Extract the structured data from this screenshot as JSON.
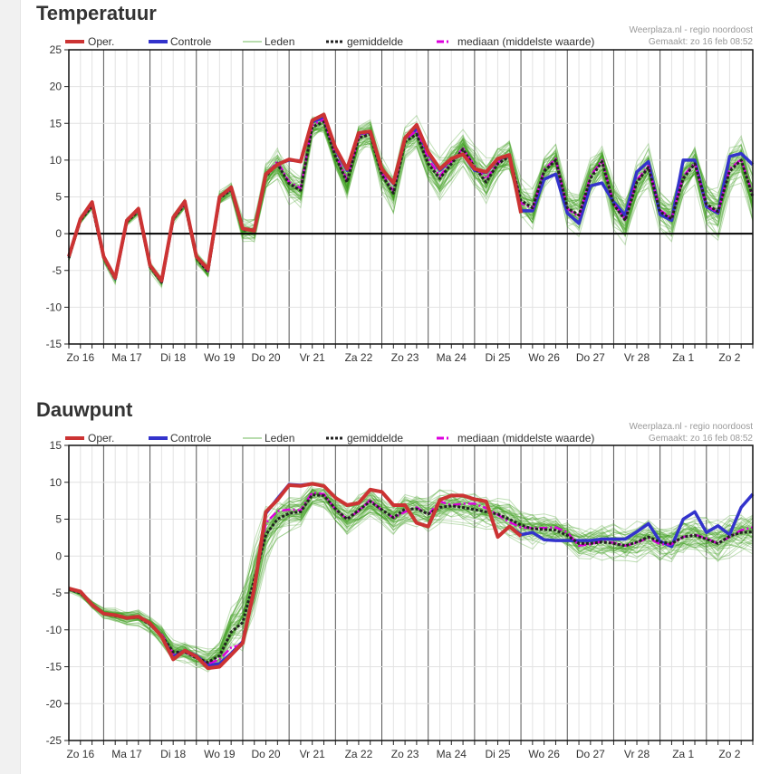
{
  "legend": {
    "oper": "Oper.",
    "control": "Controle",
    "members": "Leden",
    "mean": "gemiddelde",
    "median": "mediaan (middelste waarde)"
  },
  "credit": {
    "source": "Weerplaza.nl - regio noordoost",
    "made": "Gemaakt: zo 16 feb 08:52"
  },
  "colors": {
    "oper": "#cc3333",
    "control": "#3333cc",
    "members": "#3f9f1f",
    "mean": "#222222",
    "median": "#dd00dd"
  },
  "chart_data": [
    {
      "type": "line",
      "title": "Temperatuur",
      "x_step": "6 uur",
      "days": [
        "Zo 16",
        "Ma 17",
        "Di 18",
        "Wo 19",
        "Do 20",
        "Vr 21",
        "Za 22",
        "Zo 23",
        "Ma 24",
        "Di 25",
        "Wo 26",
        "Do 27",
        "Vr 28",
        "Za 1",
        "Zo 2"
      ],
      "yticks": [
        25,
        20,
        15,
        10,
        5,
        0,
        -5,
        -10,
        -15
      ],
      "ylim": [
        -15,
        25
      ],
      "zero_line": true,
      "grid": true,
      "legend_position": "top",
      "series": [
        {
          "name": "Oper.",
          "key": "oper",
          "values": [
            -3.1,
            2,
            4.3,
            -3.1,
            -6,
            1.8,
            3.4,
            -4.3,
            -6.4,
            2.2,
            4.4,
            -3.1,
            -4.8,
            5,
            6.3,
            0.7,
            0.4,
            8.1,
            9.4,
            10.1,
            9.8,
            15.4,
            16.2,
            11.7,
            8.8,
            13.7,
            13.9,
            8.8,
            6.9,
            13,
            14.8,
            11.1,
            8.8,
            10.2,
            10.8,
            8.8,
            8.4,
            10.2,
            10.7,
            2.8
          ]
        },
        {
          "name": "Controle",
          "key": "control",
          "values": [
            -3.1,
            2,
            4.2,
            -3.1,
            -6.1,
            1.8,
            3.3,
            -4.3,
            -6.5,
            2.1,
            4.3,
            -3.1,
            -4.9,
            5,
            6.2,
            0.7,
            0.4,
            8.1,
            9.5,
            10,
            9.9,
            15.2,
            15.8,
            11.5,
            8.6,
            13.6,
            13.8,
            8.7,
            6.8,
            13,
            14.2,
            10.9,
            8.6,
            10.1,
            10.8,
            8.6,
            8.3,
            10.1,
            10.6,
            3.1,
            3.1,
            7.4,
            8.1,
            2.8,
            1.4,
            6.5,
            6.9,
            4.3,
            2.5,
            8.4,
            9.8,
            2.6,
            1.8,
            10,
            10,
            3.7,
            2.8,
            10.5,
            10.9,
            9.4
          ]
        },
        {
          "name": "gemiddelde",
          "key": "mean",
          "values": [
            -3.3,
            1.8,
            3.8,
            -3.3,
            -6.2,
            1.6,
            3.1,
            -4.5,
            -6.6,
            2,
            4,
            -3.3,
            -5.2,
            4.8,
            6,
            0.5,
            0.5,
            7.8,
            9.5,
            6.8,
            5.9,
            14.5,
            15.2,
            10.5,
            7,
            13,
            13.5,
            8,
            5.5,
            12.5,
            13.5,
            9.5,
            7.5,
            9.5,
            11.5,
            9,
            7,
            9.5,
            10.5,
            4.5,
            3.5,
            8.5,
            10,
            3.5,
            2.5,
            7.5,
            9.8,
            4,
            1.8,
            7,
            9,
            3,
            2,
            7.5,
            9.5,
            4,
            3,
            8.5,
            10,
            5
          ]
        },
        {
          "name": "mediaan (middelste waarde)",
          "key": "median",
          "values": [
            -3.2,
            1.9,
            3.9,
            -3.2,
            -6.1,
            1.7,
            3.2,
            -4.4,
            -6.5,
            2.1,
            4.1,
            -3.2,
            -5.1,
            4.9,
            6.1,
            0.6,
            0.5,
            8,
            9.8,
            7,
            6.2,
            14.8,
            15.5,
            10.8,
            7.3,
            13.2,
            13.8,
            8.2,
            5.8,
            12.8,
            14,
            10.2,
            7.8,
            9.8,
            11.6,
            9.2,
            7.4,
            9.6,
            10.6,
            4.2,
            3.4,
            8.7,
            10.2,
            3.4,
            2.3,
            7.8,
            10,
            4.1,
            1.9,
            7.3,
            9.2,
            3.2,
            2.1,
            7.8,
            9.6,
            3.8,
            2.9,
            8.8,
            10.1,
            5.3
          ]
        }
      ],
      "members_spread": [
        0.6,
        0.8,
        1,
        0.9,
        1,
        0.9,
        1,
        1,
        1.1,
        1.1,
        1.2,
        1.2,
        1.5,
        1.5,
        1.6,
        2.8,
        3,
        3.4,
        3.6,
        3.8,
        4,
        3,
        3,
        3.5,
        4,
        3.5,
        3.5,
        4,
        4.5,
        3.5,
        3.5,
        4,
        4.5,
        4,
        4,
        4.5,
        5,
        4,
        4,
        4.5,
        4.5,
        4,
        4,
        4.5,
        5,
        4.5,
        4,
        5,
        5,
        4.5,
        4.5,
        5,
        5,
        4.5,
        4.5,
        5.5,
        5.5,
        5,
        5,
        6
      ]
    },
    {
      "type": "line",
      "title": "Dauwpunt",
      "x_step": "6 uur",
      "days": [
        "Zo 16",
        "Ma 17",
        "Di 18",
        "Wo 19",
        "Do 20",
        "Vr 21",
        "Za 22",
        "Zo 23",
        "Ma 24",
        "Di 25",
        "Wo 26",
        "Do 27",
        "Vr 28",
        "Za 1",
        "Zo 2"
      ],
      "yticks": [
        15,
        10,
        5,
        0,
        -5,
        -10,
        -15,
        -20,
        -25
      ],
      "ylim": [
        -25,
        15
      ],
      "zero_line": false,
      "grid": true,
      "legend_position": "top",
      "series": [
        {
          "name": "Oper.",
          "key": "oper",
          "values": [
            -4.4,
            -4.8,
            -6.6,
            -7.8,
            -8,
            -8.4,
            -8.2,
            -9.1,
            -10.9,
            -14,
            -12.8,
            -13.6,
            -15.2,
            -15,
            -13.4,
            -11.8,
            -4.4,
            6,
            7.6,
            9.6,
            9.5,
            9.8,
            9.5,
            7.9,
            6.9,
            7.2,
            9,
            8.7,
            6.9,
            6.9,
            4.5,
            4,
            7.6,
            8.2,
            8.2,
            7.7,
            7.4,
            2.6,
            4,
            2.7
          ]
        },
        {
          "name": "Controle",
          "key": "control",
          "values": [
            -4.4,
            -4.8,
            -6.6,
            -7.8,
            -8,
            -8.4,
            -8.2,
            -9.1,
            -10.8,
            -13.6,
            -12.8,
            -13.5,
            -14.8,
            -14.6,
            -13.2,
            -11.6,
            -4.6,
            5.8,
            7.8,
            9.7,
            9.6,
            9.8,
            9.5,
            7.9,
            6.9,
            7.2,
            9,
            8.7,
            6.9,
            6.9,
            4.5,
            4,
            7.6,
            8.2,
            8.2,
            7.7,
            7.4,
            2.6,
            4,
            2.9,
            3.2,
            2.2,
            2.1,
            2.1,
            2.1,
            2.1,
            2.3,
            2.3,
            2.3,
            3.3,
            4.4,
            2,
            1.3,
            5,
            6,
            3.2,
            4.1,
            2.9,
            6.6,
            8.4
          ]
        },
        {
          "name": "gemiddelde",
          "key": "mean",
          "values": [
            -4.5,
            -5,
            -6.6,
            -7.8,
            -8.1,
            -8.4,
            -8.3,
            -9.3,
            -10.8,
            -13,
            -13,
            -13.8,
            -14.4,
            -13.5,
            -10.3,
            -9,
            -3.2,
            2.9,
            5,
            5.8,
            6,
            8.3,
            8.2,
            6.4,
            5,
            6.2,
            7.4,
            6.3,
            5.2,
            6.4,
            6.4,
            5.7,
            6.6,
            6.8,
            6.6,
            6.3,
            6,
            5.7,
            5,
            4.2,
            3.7,
            3.6,
            3.5,
            2.8,
            1.7,
            1.7,
            1.9,
            1.7,
            1.4,
            1.9,
            2.6,
            1.9,
            1.7,
            2.6,
            2.8,
            2.3,
            1.7,
            2.7,
            3.2,
            3.3
          ]
        },
        {
          "name": "mediaan (middelste waarde)",
          "key": "median",
          "values": [
            -4.5,
            -5,
            -6.6,
            -7.8,
            -8,
            -8.4,
            -8.2,
            -9.2,
            -10.6,
            -13.2,
            -13,
            -13.8,
            -14.6,
            -14,
            -12.4,
            -12,
            -4,
            4.5,
            6.1,
            6.3,
            6.2,
            8.6,
            8.4,
            6.3,
            5,
            6.1,
            7.6,
            6.2,
            5.2,
            6,
            6.6,
            5.6,
            7.4,
            6.9,
            7.1,
            7.1,
            6.5,
            5.6,
            4.6,
            3.9,
            3.8,
            3.8,
            3.9,
            3.2,
            1.4,
            1.6,
            2,
            1.8,
            1.4,
            1.8,
            2.5,
            1.6,
            1.6,
            2.6,
            2.9,
            2.4,
            1.7,
            2.6,
            3.5,
            3.9
          ]
        }
      ],
      "members_spread": [
        0.6,
        0.8,
        1,
        1.2,
        1.4,
        1.5,
        1.6,
        1.8,
        2,
        2.2,
        2.4,
        2.5,
        2.5,
        2.8,
        4.5,
        7,
        8,
        6,
        4,
        3.5,
        3,
        2.5,
        2.5,
        3,
        3.5,
        3.5,
        3,
        3,
        3.5,
        3.5,
        3.5,
        3.5,
        3.5,
        3.5,
        3.5,
        3.5,
        3.5,
        3.5,
        3.5,
        3.5,
        3.5,
        3.5,
        3.5,
        3.5,
        3.5,
        3.8,
        3.8,
        3.8,
        3.8,
        4,
        4,
        4,
        4,
        4,
        4.2,
        4.2,
        4.5,
        4.5,
        4.5,
        4.5
      ]
    }
  ]
}
